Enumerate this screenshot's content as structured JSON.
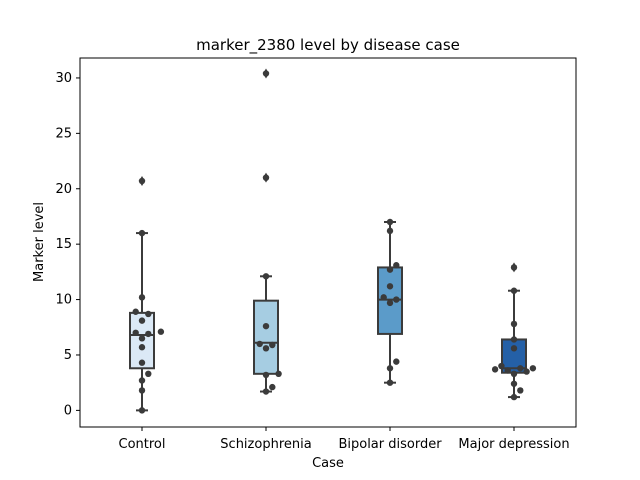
{
  "chart_data": {
    "type": "box",
    "title": "marker_2380 level by disease case",
    "xlabel": "Case",
    "ylabel": "Marker level",
    "ylim": [
      -1.5,
      31.8
    ],
    "yticks": [
      0,
      5,
      10,
      15,
      20,
      25,
      30
    ],
    "categories": [
      "Control",
      "Schizophrenia",
      "Bipolar disorder",
      "Major depression"
    ],
    "colors": [
      "#dbe9f6",
      "#a6cde2",
      "#5b9bc9",
      "#2460a7"
    ],
    "grid": false,
    "legend": "none",
    "boxes": [
      {
        "q1": 3.8,
        "median": 6.8,
        "q3": 8.8,
        "whisker_low": 0.0,
        "whisker_high": 16.0,
        "outliers": [
          20.7
        ]
      },
      {
        "q1": 3.3,
        "median": 6.1,
        "q3": 9.9,
        "whisker_low": 1.7,
        "whisker_high": 12.1,
        "outliers": [
          21.0,
          30.4
        ]
      },
      {
        "q1": 6.9,
        "median": 10.0,
        "q3": 12.9,
        "whisker_low": 2.5,
        "whisker_high": 17.0,
        "outliers": []
      },
      {
        "q1": 3.4,
        "median": 3.8,
        "q3": 6.4,
        "whisker_low": 1.2,
        "whisker_high": 10.8,
        "outliers": [
          12.9
        ]
      }
    ],
    "points": [
      [
        0.0,
        1.8,
        2.7,
        3.3,
        4.3,
        5.7,
        6.5,
        6.9,
        7.0,
        7.1,
        8.1,
        8.7,
        8.9,
        10.2,
        16.0,
        20.7
      ],
      [
        1.7,
        2.1,
        3.2,
        3.3,
        5.6,
        5.9,
        6.0,
        7.6,
        12.1,
        21.0,
        30.4
      ],
      [
        2.5,
        3.8,
        4.4,
        9.7,
        10.0,
        10.2,
        11.2,
        12.7,
        13.1,
        16.2,
        17.0
      ],
      [
        1.2,
        1.8,
        2.4,
        3.3,
        3.5,
        3.6,
        3.7,
        3.8,
        3.8,
        4.0,
        5.6,
        6.4,
        7.8,
        10.8,
        12.9
      ]
    ]
  }
}
